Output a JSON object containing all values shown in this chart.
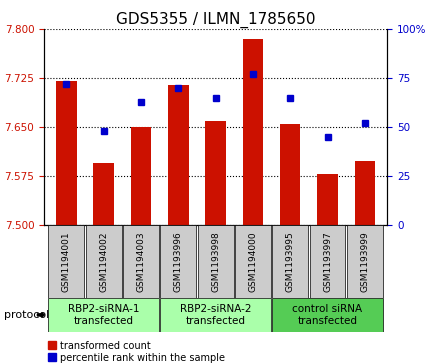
{
  "title": "GDS5355 / ILMN_1785650",
  "samples": [
    "GSM1194001",
    "GSM1194002",
    "GSM1194003",
    "GSM1193996",
    "GSM1193998",
    "GSM1194000",
    "GSM1193995",
    "GSM1193997",
    "GSM1193999"
  ],
  "red_values": [
    7.72,
    7.595,
    7.65,
    7.715,
    7.66,
    7.785,
    7.655,
    7.578,
    7.598
  ],
  "blue_values": [
    72,
    48,
    63,
    70,
    65,
    77,
    65,
    45,
    52
  ],
  "ylim_left": [
    7.5,
    7.8
  ],
  "ylim_right": [
    0,
    100
  ],
  "yticks_left": [
    7.5,
    7.575,
    7.65,
    7.725,
    7.8
  ],
  "yticks_right": [
    0,
    25,
    50,
    75,
    100
  ],
  "ytick_labels_right": [
    "0",
    "25",
    "50",
    "75",
    "100%"
  ],
  "groups": [
    {
      "label": "RBP2-siRNA-1\ntransfected",
      "indices": [
        0,
        1,
        2
      ],
      "color": "#aaffaa"
    },
    {
      "label": "RBP2-siRNA-2\ntransfected",
      "indices": [
        3,
        4,
        5
      ],
      "color": "#aaffaa"
    },
    {
      "label": "control siRNA\ntransfected",
      "indices": [
        6,
        7,
        8
      ],
      "color": "#55cc55"
    }
  ],
  "bar_color": "#cc1100",
  "dot_color": "#0000cc",
  "grid_color": "#000000",
  "bg_color": "#ffffff",
  "sample_box_color": "#cccccc",
  "bar_width": 0.55,
  "legend_red_label": "transformed count",
  "legend_blue_label": "percentile rank within the sample",
  "protocol_label": "protocol",
  "title_fontsize": 11,
  "tick_fontsize": 7.5,
  "sample_fontsize": 6.5,
  "group_fontsize": 7.5,
  "legend_fontsize": 7
}
